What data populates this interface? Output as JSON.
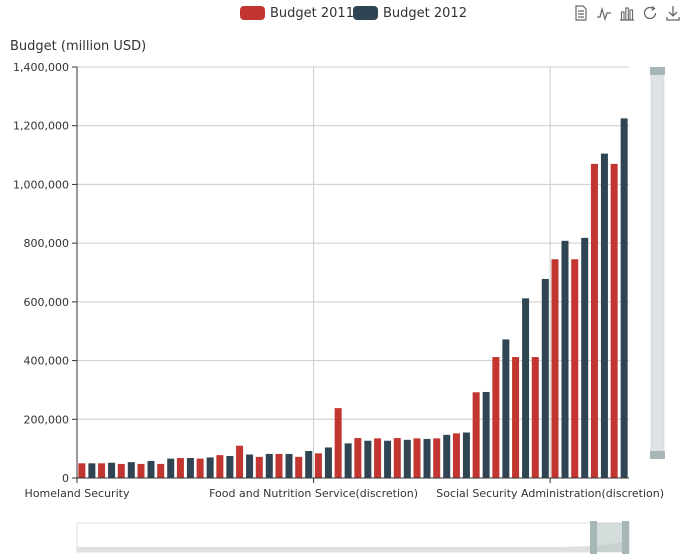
{
  "chart_data": {
    "type": "bar",
    "ylabel": "Budget (million USD)",
    "ylim": [
      0,
      1400000
    ],
    "yticks": [
      0,
      200000,
      400000,
      600000,
      800000,
      1000000,
      1200000,
      1400000
    ],
    "ytick_labels": [
      "0",
      "200,000",
      "400,000",
      "600,000",
      "800,000",
      "1,000,000",
      "1,200,000",
      "1,400,000"
    ],
    "xtick_labels": [
      "Homeland Security",
      "Food and Nutrition Service(discretion)",
      "Social Security Administration(discretion)"
    ],
    "legend_position": "top-center",
    "grid": true,
    "series": [
      {
        "name": "Budget 2011",
        "color": "#c23531",
        "values": [
          50000,
          50000,
          48000,
          48000,
          48000,
          68000,
          66000,
          78000,
          110000,
          72000,
          82000,
          72000,
          84000,
          238000,
          136000,
          135000,
          136000,
          135000,
          135000,
          152000,
          292000,
          412000,
          412000,
          412000,
          745000,
          745000,
          1070000,
          1070000
        ]
      },
      {
        "name": "Budget 2012",
        "color": "#2f4554",
        "values": [
          50000,
          52000,
          54000,
          58000,
          66000,
          68000,
          70000,
          75000,
          80000,
          82000,
          82000,
          92000,
          104000,
          118000,
          127000,
          127000,
          130000,
          133000,
          147000,
          155000,
          293000,
          472000,
          612000,
          678000,
          808000,
          818000,
          1105000,
          1225000
        ]
      }
    ]
  },
  "legend": [
    {
      "label": "Budget 2011",
      "color": "#c23531"
    },
    {
      "label": "Budget 2012",
      "color": "#2f4554"
    }
  ],
  "toolbox": [
    "data-view-icon",
    "line-chart-icon",
    "bar-chart-icon",
    "restore-icon",
    "download-icon"
  ]
}
